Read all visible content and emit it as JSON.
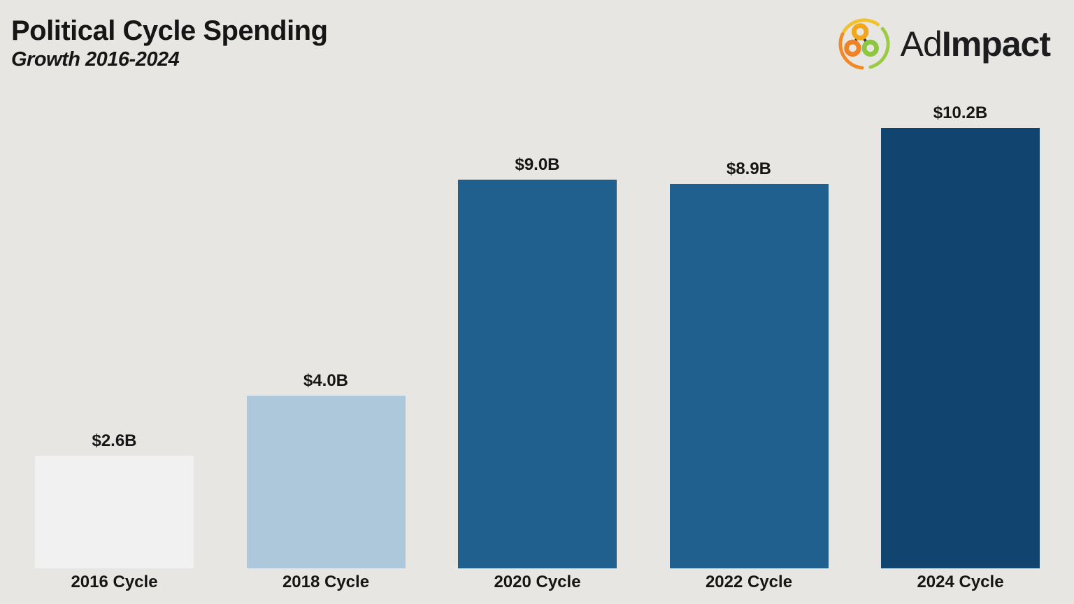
{
  "header": {
    "title": "Political Cycle Spending",
    "subtitle": "Growth 2016-2024",
    "logo": {
      "text_regular": "Ad",
      "text_bold": "Impact",
      "icon": "adimpact-rings-icon",
      "colors": {
        "arc_yellow": "#F2C12E",
        "arc_green": "#9BCB43",
        "arc_orange": "#F08A28",
        "node_amber": "#F2A71B",
        "node_orange": "#F08226",
        "node_green": "#8DC63F",
        "connector": "#3A3A3A",
        "wordmark": "#1D1D1F"
      }
    }
  },
  "chart_data": {
    "type": "bar",
    "title": "Political Cycle Spending",
    "subtitle": "Growth 2016-2024",
    "categories": [
      "2016 Cycle",
      "2018 Cycle",
      "2020 Cycle",
      "2022 Cycle",
      "2024 Cycle"
    ],
    "values": [
      2.6,
      4.0,
      9.0,
      8.9,
      10.2
    ],
    "value_labels": [
      "$2.6B",
      "$4.0B",
      "$9.0B",
      "$8.9B",
      "$10.2B"
    ],
    "bar_colors": [
      "#F1F1F1",
      "#ADC7DB",
      "#1F608E",
      "#1F608E",
      "#114570"
    ],
    "xlabel": "",
    "ylabel": "",
    "ylim": [
      0,
      10.2
    ],
    "grid": false,
    "legend": false,
    "axis_lines": false
  },
  "colors": {
    "background": "#E8E6E2",
    "text": "#161616"
  }
}
